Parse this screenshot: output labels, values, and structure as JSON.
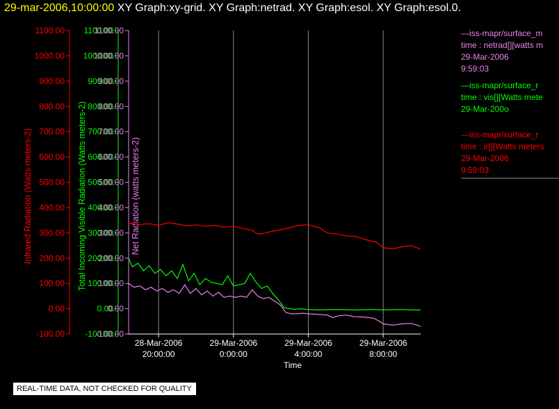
{
  "header": {
    "timestamp": "29-mar-2006,10:00:00",
    "graph_titles": [
      "XY Graph:xy-grid.",
      "XY Graph:netrad.",
      "XY Graph:esol.",
      "XY Graph:esol.0."
    ]
  },
  "colors": {
    "infrared": "#ff0000",
    "visible": "#00ff00",
    "net": "#ee82ee",
    "grid": "#8c8c8c",
    "axis": "#ffffff"
  },
  "legend": [
    {
      "color": "#ee82ee",
      "lines": [
        "—iss-mapr/surface_m",
        "time : netrad[][watts m",
        "29-Mar-2006",
        "9:59:03"
      ]
    },
    {
      "color": "#00ff00",
      "lines": [
        "—iss-mapr/surface_r",
        "time : vis[][Watts mete",
        "29-Mar-200o"
      ]
    },
    {
      "color": "#ff0000",
      "lines": [
        "—iss-mapr/surface_r",
        "time : ir[][Watts meters",
        "29-Mar-2006",
        "9:59:03"
      ]
    }
  ],
  "disclaimer": "REAL-TIME DATA, NOT CHECKED FOR QUALITY",
  "chart_data": {
    "type": "line",
    "xlabel": "Time",
    "x_ticks": [
      {
        "time_hours": 20,
        "label_date": "28-Mar-2006",
        "label_time": "20:00:00"
      },
      {
        "time_hours": 24,
        "label_date": "29-Mar-2006",
        "label_time": "0:00:00"
      },
      {
        "time_hours": 28,
        "label_date": "29-Mar-2006",
        "label_time": "4:00:00"
      },
      {
        "time_hours": 32,
        "label_date": "29-Mar-2006",
        "label_time": "8:00:00"
      }
    ],
    "xlim_hours": [
      18.4,
      34.0
    ],
    "grid": "vertical",
    "y_axes": [
      {
        "label": "Infrared Radiation (Watts meters-2)",
        "color": "#ff0000",
        "ticks": [
          "1100.00",
          "1000.00",
          "900.00",
          "800.00",
          "700.00",
          "600.00",
          "500.00",
          "400.00",
          "300.00",
          "200.00",
          "100.00",
          "0.00",
          "-100.00"
        ]
      },
      {
        "label": "Total Incoming Visible Radiation (Watts meters-2)",
        "color": "#00ff00",
        "ticks": [
          "1100.00",
          "1000.00",
          "900.00",
          "800.00",
          "700.00",
          "600.00",
          "500.00",
          "400.00",
          "300.00",
          "200.00",
          "100.00",
          "0.00",
          "-100.00"
        ]
      },
      {
        "label": "Net Radiation (watts meters-2)",
        "color": "#ee82ee",
        "ticks": [
          "1100.00",
          "1000.00",
          "900.00",
          "800.00",
          "700.00",
          "600.00",
          "500.00",
          "400.00",
          "300.00",
          "200.00",
          "100.00",
          "0.00",
          "-100.00"
        ]
      }
    ],
    "ylim": [
      -100,
      1100
    ],
    "series": [
      {
        "color": "#ff0000",
        "x": [
          18.4,
          19.0,
          19.5,
          20.0,
          20.5,
          21.0,
          21.5,
          22.0,
          22.5,
          23.0,
          23.5,
          24.0,
          24.5,
          25.0,
          25.3,
          25.6,
          26.0,
          26.5,
          27.0,
          27.5,
          28.0,
          28.3,
          28.6,
          29.0,
          29.5,
          30.0,
          30.5,
          31.0,
          31.3,
          31.6,
          32.0,
          32.5,
          33.0,
          33.5,
          34.0
        ],
        "y": [
          338,
          333,
          336,
          330,
          340,
          335,
          328,
          332,
          325,
          330,
          322,
          325,
          318,
          310,
          295,
          298,
          305,
          312,
          320,
          330,
          332,
          326,
          320,
          300,
          296,
          288,
          286,
          275,
          268,
          265,
          242,
          236,
          245,
          250,
          235
        ]
      },
      {
        "color": "#00ff00",
        "x": [
          18.4,
          18.6,
          18.9,
          19.2,
          19.5,
          19.8,
          20.1,
          20.4,
          20.7,
          21.0,
          21.3,
          21.6,
          21.9,
          22.2,
          22.5,
          22.8,
          23.1,
          23.4,
          23.7,
          24.0,
          24.3,
          24.6,
          24.9,
          25.2,
          25.5,
          25.8,
          26.1,
          26.4,
          26.7,
          27.0,
          27.3,
          27.6,
          28.0,
          28.5,
          29.0,
          29.5,
          30.0,
          30.5,
          31.0,
          31.5,
          32.0,
          32.5,
          33.0,
          33.5,
          34.0
        ],
        "y": [
          200,
          165,
          180,
          150,
          170,
          140,
          155,
          130,
          150,
          120,
          175,
          110,
          140,
          95,
          120,
          105,
          100,
          95,
          130,
          90,
          95,
          100,
          140,
          105,
          80,
          90,
          60,
          35,
          5,
          0,
          -2,
          0,
          -3,
          -5,
          -4,
          -3,
          -4,
          -5,
          -4,
          -3,
          -5,
          -4,
          -3,
          -5,
          -5
        ]
      },
      {
        "color": "#ee82ee",
        "x": [
          18.4,
          18.7,
          19.0,
          19.3,
          19.6,
          19.9,
          20.2,
          20.5,
          20.8,
          21.1,
          21.4,
          21.7,
          22.0,
          22.3,
          22.6,
          22.9,
          23.2,
          23.5,
          23.8,
          24.1,
          24.4,
          24.7,
          25.0,
          25.3,
          25.6,
          25.9,
          26.2,
          26.5,
          26.8,
          27.1,
          27.4,
          27.7,
          28.0,
          28.5,
          29.0,
          29.3,
          29.6,
          30.0,
          30.5,
          31.0,
          31.5,
          31.8,
          32.0,
          32.5,
          33.0,
          33.5,
          34.0
        ],
        "y": [
          100,
          85,
          90,
          75,
          85,
          70,
          80,
          65,
          75,
          60,
          95,
          60,
          80,
          55,
          70,
          50,
          65,
          45,
          50,
          45,
          50,
          45,
          75,
          50,
          40,
          45,
          30,
          15,
          -15,
          -20,
          -20,
          -18,
          -20,
          -22,
          -25,
          -35,
          -28,
          -25,
          -32,
          -33,
          -38,
          -50,
          -60,
          -65,
          -60,
          -58,
          -70
        ]
      }
    ]
  }
}
